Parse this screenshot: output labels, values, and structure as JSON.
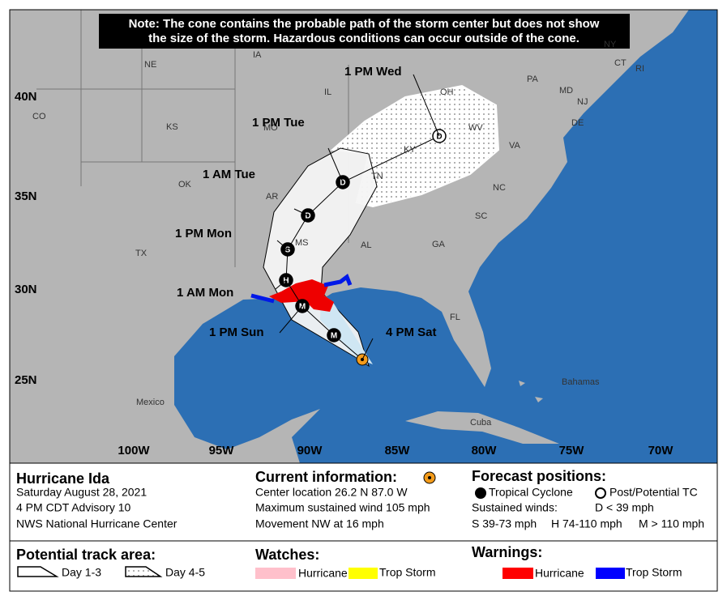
{
  "header": {
    "note_lines": [
      "Note: The cone contains the probable path of the storm center but does not show",
      "the size of the storm. Hazardous conditions can occur outside of the cone."
    ]
  },
  "map": {
    "lat_labels": [
      "40N",
      "35N",
      "30N",
      "25N"
    ],
    "lon_labels": [
      "100W",
      "95W",
      "90W",
      "85W",
      "80W",
      "75W",
      "70W"
    ],
    "place_labels": [
      "NE",
      "IA",
      "IL",
      "OH",
      "PA",
      "CO",
      "KS",
      "MO",
      "KY",
      "WV",
      "VA",
      "OK",
      "AR",
      "TN",
      "NC",
      "SC",
      "TX",
      "MS",
      "AL",
      "GA",
      "FL",
      "Mexico",
      "Bahamas",
      "Cuba",
      "NJ",
      "CT",
      "RI",
      "NY",
      "MD",
      "DE"
    ],
    "forecast_points": [
      {
        "label": "4 PM Sat",
        "symbol": null
      },
      {
        "label": null,
        "symbol": "M"
      },
      {
        "label": "1 PM Sun",
        "symbol": "M"
      },
      {
        "label": "1 AM Mon",
        "symbol": "H"
      },
      {
        "label": "1 PM Mon",
        "symbol": "S"
      },
      {
        "label": "1 AM Tue",
        "symbol": "D"
      },
      {
        "label": "1 PM Tue",
        "symbol": "D"
      },
      {
        "label": "1 PM Wed",
        "symbol": "D"
      }
    ]
  },
  "info": {
    "storm": "Hurricane Ida",
    "date": "Saturday August 28, 2021",
    "advisory": "4 PM CDT Advisory 10",
    "source": "NWS National Hurricane Center"
  },
  "current": {
    "heading": "Current information:",
    "location": "Center location 26.2 N 87.0 W",
    "wind": "Maximum sustained wind 105 mph",
    "movement": "Movement NW at 16 mph"
  },
  "forecast_positions": {
    "heading": "Forecast positions:",
    "tropical": "Tropical Cyclone",
    "post": "Post/Potential TC",
    "sustained": "Sustained winds:",
    "d": "D < 39 mph",
    "s": "S 39-73 mph",
    "h": "H 74-110 mph",
    "m": "M > 110 mph"
  },
  "track_area": {
    "heading": "Potential track area:",
    "day13": "Day 1-3",
    "day45": "Day 4-5"
  },
  "watches": {
    "heading": "Watches:",
    "hurricane": "Hurricane",
    "trop_storm": "Trop Storm"
  },
  "warnings": {
    "heading": "Warnings:",
    "hurricane": "Hurricane",
    "trop_storm": "Trop Storm"
  }
}
